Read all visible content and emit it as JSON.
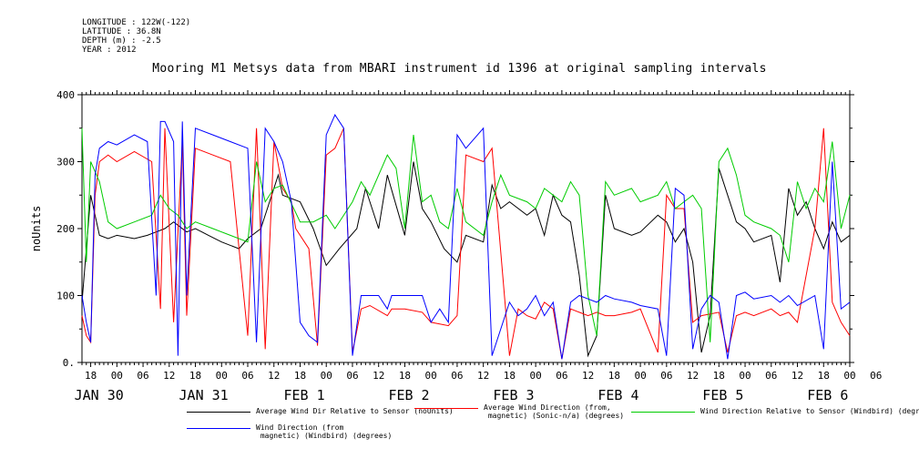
{
  "meta": {
    "longitude": "LONGITUDE : 122W(-122)",
    "latitude": "LATITUDE : 36.8N",
    "depth": "DEPTH (m) : -2.5",
    "year": "YEAR : 2012"
  },
  "chart_data": {
    "type": "line",
    "title": "Mooring M1 Metsys data from MBARI instrument id 1396 at original sampling intervals",
    "ylabel": "noUnits",
    "xlabel": "",
    "ylim": [
      0,
      400
    ],
    "yticks": [
      0,
      100,
      200,
      300,
      400
    ],
    "ytick_labels": [
      "0.",
      "100",
      "200",
      "300",
      "400"
    ],
    "xlim_hours": [
      -8,
      168
    ],
    "xtick_labels": [
      "18",
      "00",
      "06",
      "12",
      "18",
      "00",
      "06",
      "12",
      "18",
      "00",
      "06",
      "12",
      "18",
      "00",
      "06",
      "12",
      "18",
      "00",
      "06",
      "12",
      "18",
      "00",
      "06",
      "12",
      "18",
      "00",
      "06",
      "12",
      "18",
      "00",
      "06"
    ],
    "day_labels": [
      {
        "label": "JAN 30",
        "hour": -6
      },
      {
        "label": "JAN 31",
        "hour": 18
      },
      {
        "label": "FEB  1",
        "hour": 42
      },
      {
        "label": "FEB  2",
        "hour": 66
      },
      {
        "label": "FEB  3",
        "hour": 90
      },
      {
        "label": "FEB  4",
        "hour": 114
      },
      {
        "label": "FEB  5",
        "hour": 138
      },
      {
        "label": "FEB  6",
        "hour": 162
      }
    ],
    "legend_placement": "bottom",
    "series": [
      {
        "name": "Average Wind Dir Relative to Sensor (noUnits)",
        "color": "#000000",
        "x": [
          -8,
          -6,
          -4,
          -2,
          0,
          4,
          7,
          9,
          11,
          13,
          16,
          18,
          21,
          24,
          28,
          30,
          33,
          37,
          38,
          42,
          45,
          48,
          51,
          55,
          57,
          60,
          62,
          66,
          68,
          70,
          72,
          75,
          78,
          80,
          84,
          86,
          88,
          90,
          94,
          96,
          98,
          100,
          102,
          104,
          106,
          108,
          110,
          112,
          114,
          118,
          120,
          124,
          126,
          128,
          130,
          132,
          134,
          136,
          138,
          142,
          144,
          146,
          150,
          152,
          154,
          156,
          158,
          160,
          162,
          164,
          166,
          168
        ],
        "y": [
          90,
          250,
          190,
          185,
          190,
          185,
          190,
          195,
          200,
          210,
          195,
          200,
          190,
          180,
          170,
          185,
          200,
          280,
          250,
          240,
          200,
          145,
          170,
          200,
          260,
          200,
          280,
          190,
          300,
          230,
          210,
          170,
          150,
          190,
          180,
          265,
          230,
          240,
          220,
          230,
          190,
          250,
          220,
          210,
          130,
          10,
          40,
          250,
          200,
          190,
          195,
          220,
          210,
          180,
          200,
          150,
          15,
          70,
          290,
          210,
          200,
          180,
          190,
          120,
          260,
          220,
          240,
          200,
          170,
          210,
          180,
          190
        ]
      },
      {
        "name": "Average Wind Direction (from,\n magnetic) (Sonic-n/a) (degrees)",
        "color": "#ff0000",
        "x": [
          -8,
          -7,
          -6,
          -5,
          -4,
          -2,
          0,
          4,
          8,
          10,
          11,
          13,
          15,
          16,
          18,
          22,
          26,
          30,
          32,
          34,
          36,
          38,
          40,
          41,
          44,
          46,
          48,
          50,
          52,
          54,
          56,
          58,
          62,
          63,
          66,
          70,
          72,
          76,
          78,
          80,
          84,
          86,
          90,
          92,
          94,
          96,
          98,
          100,
          102,
          104,
          106,
          108,
          110,
          112,
          114,
          118,
          120,
          124,
          126,
          128,
          130,
          132,
          134,
          138,
          140,
          142,
          144,
          146,
          150,
          152,
          154,
          156,
          160,
          162,
          164,
          166,
          168
        ],
        "y": [
          70,
          40,
          30,
          250,
          300,
          310,
          300,
          315,
          300,
          80,
          350,
          60,
          330,
          70,
          320,
          310,
          300,
          40,
          350,
          20,
          330,
          260,
          240,
          200,
          170,
          25,
          310,
          320,
          350,
          15,
          80,
          85,
          70,
          80,
          80,
          75,
          60,
          55,
          70,
          310,
          300,
          320,
          10,
          80,
          70,
          65,
          90,
          80,
          5,
          80,
          75,
          70,
          75,
          70,
          70,
          75,
          80,
          15,
          250,
          230,
          230,
          60,
          70,
          75,
          15,
          70,
          75,
          70,
          80,
          70,
          75,
          60,
          200,
          350,
          90,
          60,
          40
        ]
      },
      {
        "name": "Wind Direction Relative to Sensor (Windbird) (degrees)",
        "color": "#00cc00",
        "x": [
          -8,
          -7,
          -6,
          -4,
          -2,
          0,
          4,
          8,
          10,
          12,
          14,
          16,
          18,
          22,
          26,
          30,
          32,
          34,
          36,
          38,
          42,
          45,
          48,
          50,
          54,
          56,
          58,
          62,
          64,
          66,
          68,
          70,
          72,
          74,
          76,
          78,
          80,
          84,
          86,
          88,
          90,
          94,
          96,
          98,
          100,
          102,
          104,
          106,
          108,
          110,
          112,
          114,
          118,
          120,
          124,
          126,
          128,
          130,
          132,
          134,
          136,
          138,
          140,
          142,
          144,
          146,
          150,
          152,
          154,
          156,
          158,
          160,
          162,
          164,
          166,
          168
        ],
        "y": [
          350,
          150,
          300,
          270,
          210,
          200,
          210,
          220,
          250,
          230,
          220,
          200,
          210,
          200,
          190,
          180,
          300,
          240,
          260,
          265,
          210,
          210,
          220,
          200,
          240,
          270,
          250,
          310,
          290,
          200,
          340,
          240,
          250,
          210,
          200,
          260,
          210,
          190,
          240,
          280,
          250,
          240,
          230,
          260,
          250,
          240,
          270,
          250,
          100,
          40,
          270,
          250,
          260,
          240,
          250,
          270,
          230,
          240,
          250,
          230,
          30,
          300,
          320,
          280,
          220,
          210,
          200,
          190,
          150,
          270,
          230,
          260,
          240,
          330,
          200,
          250
        ]
      },
      {
        "name": "Wind Direction (from\n magnetic) (Windbird) (degrees)",
        "color": "#0000ff",
        "x": [
          -8,
          -7,
          -6,
          -5,
          -4,
          -2,
          0,
          4,
          7,
          9,
          10,
          11,
          13,
          14,
          15,
          16,
          18,
          22,
          26,
          30,
          32,
          34,
          36,
          38,
          40,
          42,
          44,
          46,
          48,
          50,
          52,
          54,
          56,
          60,
          62,
          63,
          66,
          70,
          72,
          74,
          76,
          78,
          80,
          84,
          86,
          90,
          92,
          94,
          96,
          98,
          100,
          102,
          104,
          106,
          108,
          110,
          112,
          114,
          118,
          120,
          124,
          126,
          128,
          130,
          132,
          134,
          136,
          138,
          140,
          142,
          144,
          146,
          150,
          152,
          154,
          156,
          160,
          162,
          164,
          166,
          168
        ],
        "y": [
          100,
          60,
          30,
          280,
          320,
          330,
          325,
          340,
          330,
          100,
          360,
          360,
          330,
          10,
          360,
          100,
          350,
          340,
          330,
          320,
          30,
          350,
          330,
          300,
          240,
          60,
          40,
          30,
          340,
          370,
          350,
          10,
          100,
          100,
          80,
          100,
          100,
          100,
          60,
          80,
          60,
          340,
          320,
          350,
          10,
          90,
          70,
          80,
          100,
          70,
          90,
          5,
          90,
          100,
          95,
          90,
          100,
          95,
          90,
          85,
          80,
          10,
          260,
          250,
          20,
          80,
          100,
          90,
          5,
          100,
          105,
          95,
          100,
          90,
          100,
          85,
          100,
          20,
          300,
          80,
          90
        ]
      }
    ]
  }
}
